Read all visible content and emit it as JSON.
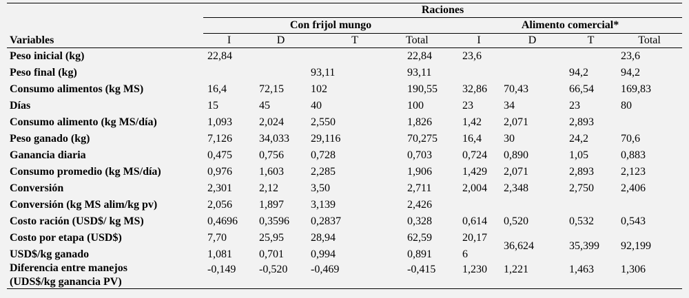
{
  "header": {
    "raciones": "Raciones",
    "variables": "Variables",
    "groups": [
      "Con frijol mungo",
      "Alimento comercial*"
    ],
    "subheaders": [
      "I",
      "D",
      "T",
      "Total",
      "I",
      "D",
      "T",
      "Total"
    ]
  },
  "rows": [
    {
      "label": "Peso inicial (kg)",
      "cells": [
        "22,84",
        "",
        "",
        "22,84",
        "23,6",
        "",
        "",
        "23,6"
      ]
    },
    {
      "label": "Peso final (kg)",
      "cells": [
        "",
        "",
        "93,11",
        "93,11",
        "",
        "",
        "94,2",
        "94,2"
      ]
    },
    {
      "label": "Consumo alimentos (kg MS)",
      "cells": [
        "16,4",
        "72,15",
        "102",
        "190,55",
        "32,86",
        "70,43",
        "66,54",
        "169,83"
      ]
    },
    {
      "label": "Días",
      "cells": [
        "15",
        "45",
        "40",
        "100",
        "23",
        "34",
        "23",
        "80"
      ]
    },
    {
      "label": "Consumo alimento (kg MS/día)",
      "cells": [
        "1,093",
        "2,024",
        "2,550",
        "1,826",
        "1,42",
        "2,071",
        "2,893",
        ""
      ]
    },
    {
      "label": "Peso ganado (kg)",
      "cells": [
        "7,126",
        "34,033",
        "29,116",
        "70,275",
        "16,4",
        "30",
        "24,2",
        "70,6"
      ]
    },
    {
      "label": "Ganancia diaria",
      "cells": [
        "0,475",
        "0,756",
        "0,728",
        "0,703",
        "0,724",
        "0,890",
        "1,05",
        "0,883"
      ]
    },
    {
      "label": "Consumo promedio (kg MS/día)",
      "cells": [
        "0,976",
        "1,603",
        "2,285",
        "1,906",
        "1,429",
        "2,071",
        "2,893",
        "2,123"
      ]
    },
    {
      "label": "Conversión",
      "cells": [
        "2,301",
        "2,12",
        "3,50",
        "2,711",
        "2,004",
        "2,348",
        "2,750",
        "2,406"
      ]
    },
    {
      "label": "Conversión (kg MS alim/kg pv)",
      "cells": [
        "2,056",
        "1,897",
        "3,139",
        "2,426",
        "",
        "",
        "",
        ""
      ]
    },
    {
      "label": "Costo ración (USD$/ kg MS)",
      "cells": [
        "0,4696",
        "0,3596",
        "0,2837",
        "0,328",
        "0,614",
        "0,520",
        "0,532",
        "0,543"
      ]
    }
  ],
  "cost_rows": {
    "label1": "Costo por etapa (USD$)",
    "label2": "USD$/kg ganado",
    "cells1": [
      "7,70",
      "25,95",
      "28,94",
      "62,59"
    ],
    "cells2": [
      "1,081",
      "0,701",
      "0,994",
      "0,891"
    ],
    "split_i_top": "20,17",
    "split_i_bottom": "6",
    "merged": [
      "36,624",
      "35,399",
      "92,199"
    ]
  },
  "diff_row": {
    "label1": "Diferencia entre manejos",
    "label2": "(UDS$/kg ganancia PV)",
    "cells": [
      "-0,149",
      "-0,520",
      "-0,469",
      "-0,415",
      "1,230",
      "1,221",
      "1,463",
      "1,306"
    ]
  }
}
